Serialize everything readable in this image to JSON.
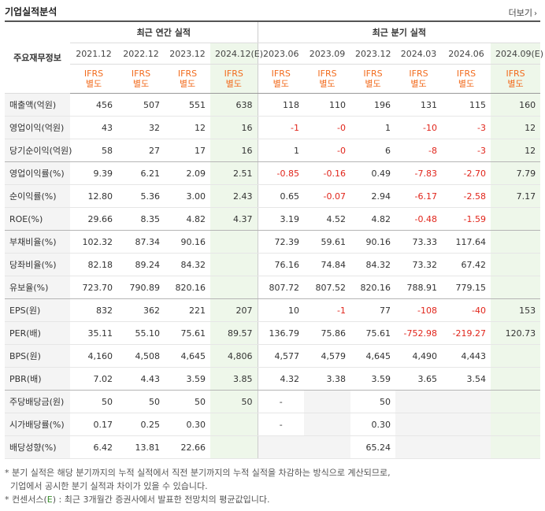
{
  "header": {
    "title": "기업실적분석",
    "more_label": "더보기"
  },
  "table": {
    "label_header": "주요재무정보",
    "annual_header": "최근 연간 실적",
    "quarter_header": "최근 분기 실적",
    "periods": [
      "2021.12",
      "2022.12",
      "2023.12",
      "2024.12(E)",
      "2023.06",
      "2023.09",
      "2023.12",
      "2024.03",
      "2024.06",
      "2024.09(E)"
    ],
    "ifrs_line1": "IFRS",
    "ifrs_line2": "별도",
    "rows": [
      {
        "label": "매출액(억원)",
        "values": [
          "456",
          "507",
          "551",
          "638",
          "118",
          "110",
          "196",
          "131",
          "115",
          "160"
        ]
      },
      {
        "label": "영업이익(억원)",
        "values": [
          "43",
          "32",
          "12",
          "16",
          "-1",
          "-0",
          "1",
          "-10",
          "-3",
          "12"
        ]
      },
      {
        "label": "당기순이익(억원)",
        "values": [
          "58",
          "27",
          "17",
          "16",
          "1",
          "-0",
          "6",
          "-8",
          "-3",
          "12"
        ]
      },
      {
        "label": "영업이익률(%)",
        "values": [
          "9.39",
          "6.21",
          "2.09",
          "2.51",
          "-0.85",
          "-0.16",
          "0.49",
          "-7.83",
          "-2.70",
          "7.79"
        ]
      },
      {
        "label": "순이익률(%)",
        "values": [
          "12.80",
          "5.36",
          "3.00",
          "2.43",
          "0.65",
          "-0.07",
          "2.94",
          "-6.17",
          "-2.58",
          "7.17"
        ]
      },
      {
        "label": "ROE(%)",
        "values": [
          "29.66",
          "8.35",
          "4.82",
          "4.37",
          "3.19",
          "4.52",
          "4.82",
          "-0.48",
          "-1.59",
          ""
        ]
      },
      {
        "label": "부채비율(%)",
        "values": [
          "102.32",
          "87.34",
          "90.16",
          "",
          "72.39",
          "59.61",
          "90.16",
          "73.33",
          "117.64",
          ""
        ]
      },
      {
        "label": "당좌비율(%)",
        "values": [
          "82.18",
          "89.24",
          "84.32",
          "",
          "76.16",
          "74.84",
          "84.32",
          "73.32",
          "67.42",
          ""
        ]
      },
      {
        "label": "유보율(%)",
        "values": [
          "723.70",
          "790.89",
          "820.16",
          "",
          "807.72",
          "807.52",
          "820.16",
          "788.91",
          "779.15",
          ""
        ]
      },
      {
        "label": "EPS(원)",
        "values": [
          "832",
          "362",
          "221",
          "207",
          "10",
          "-1",
          "77",
          "-108",
          "-40",
          "153"
        ]
      },
      {
        "label": "PER(배)",
        "values": [
          "35.11",
          "55.10",
          "75.61",
          "89.57",
          "136.79",
          "75.86",
          "75.61",
          "-752.98",
          "-219.27",
          "120.73"
        ]
      },
      {
        "label": "BPS(원)",
        "values": [
          "4,160",
          "4,508",
          "4,645",
          "4,806",
          "4,577",
          "4,579",
          "4,645",
          "4,490",
          "4,443",
          ""
        ]
      },
      {
        "label": "PBR(배)",
        "values": [
          "7.02",
          "4.43",
          "3.59",
          "3.85",
          "4.32",
          "3.38",
          "3.59",
          "3.65",
          "3.54",
          ""
        ]
      },
      {
        "label": "주당배당금(원)",
        "values": [
          "50",
          "50",
          "50",
          "50",
          "-",
          "",
          "50",
          "",
          "",
          ""
        ]
      },
      {
        "label": "시가배당률(%)",
        "values": [
          "0.17",
          "0.25",
          "0.30",
          "",
          "-",
          "",
          "0.30",
          "",
          "",
          ""
        ]
      },
      {
        "label": "배당성향(%)",
        "values": [
          "6.42",
          "13.81",
          "22.66",
          "",
          "",
          "",
          "65.24",
          "",
          "",
          ""
        ]
      }
    ]
  },
  "notes": {
    "line1": "* 분기 실적은 해당 분기까지의 누적 실적에서 직전 분기까지의 누적 실적을 차감하는 방식으로 계산되므로,",
    "line2": "  기업에서 공시한 분기 실적과 차이가 있을 수 있습니다.",
    "line3_prefix": "* 컨센서스(",
    "line3_e": "E",
    "line3_suffix": ") : 최근 3개월간 증권사에서 발표한 전망치의 평균값입니다."
  }
}
